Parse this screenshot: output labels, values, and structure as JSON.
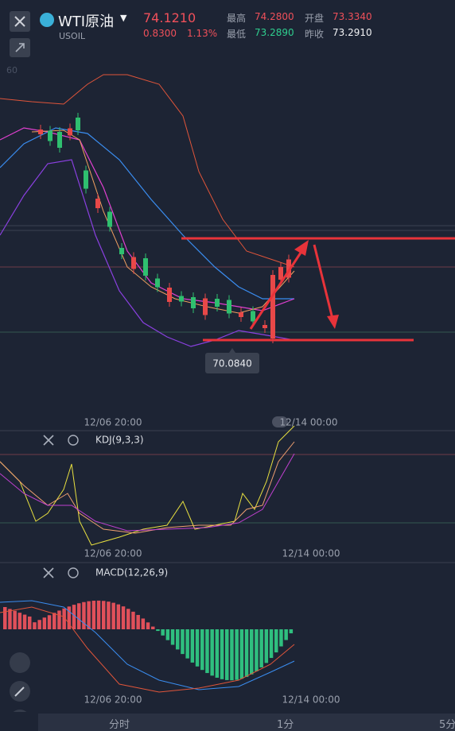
{
  "header": {
    "symbol": "WTI原油",
    "code": "USOIL",
    "price": "74.1210",
    "change": "0.8300",
    "change_pct": "1.13%",
    "stats": [
      {
        "label": "最高",
        "value": "74.2800"
      },
      {
        "label": "开盘",
        "value": "73.3340"
      },
      {
        "label": "最低",
        "value": "73.2890"
      },
      {
        "label": "昨收",
        "value": "73.2910"
      }
    ]
  },
  "main_chart": {
    "axis_label": "60",
    "low_marker": "70.0840",
    "x_labels": [
      "12/06 20:00",
      "12/14 00:00"
    ]
  },
  "kdj": {
    "title": "KDJ(9,3,3)",
    "x_labels": [
      "12/06 20:00",
      "12/14 00:00"
    ]
  },
  "macd": {
    "title": "MACD(12,26,9)",
    "x_labels": [
      "12/06 20:00",
      "12/14 00:00"
    ]
  },
  "timeframes": [
    "分时",
    "1分",
    "5分"
  ]
}
